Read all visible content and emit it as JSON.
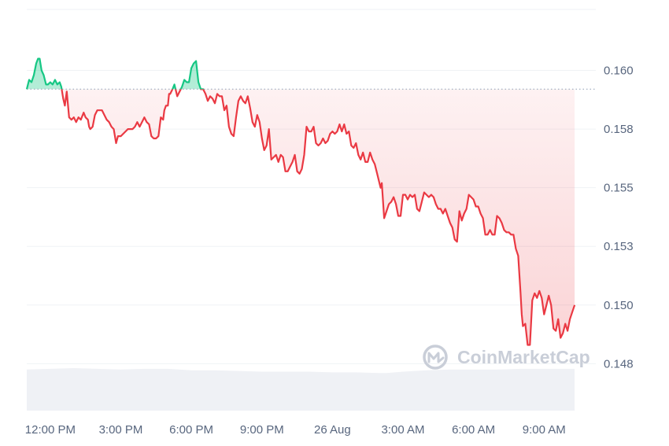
{
  "chart_data": {
    "type": "area",
    "title": "",
    "xlabel": "",
    "ylabel": "",
    "baseline": 0.1592,
    "ylim": [
      0.1455,
      0.1626
    ],
    "y_ticks": [
      {
        "value": 0.16,
        "label": "0.160"
      },
      {
        "value": 0.1575,
        "label": "0.158"
      },
      {
        "value": 0.155,
        "label": "0.155"
      },
      {
        "value": 0.1525,
        "label": "0.153"
      },
      {
        "value": 0.15,
        "label": "0.150"
      },
      {
        "value": 0.1475,
        "label": "0.148"
      }
    ],
    "x_ticks": [
      {
        "value": 1.0,
        "label": "12:00 PM"
      },
      {
        "value": 4.0,
        "label": "3:00 PM"
      },
      {
        "value": 7.0,
        "label": "6:00 PM"
      },
      {
        "value": 10.0,
        "label": "9:00 PM"
      },
      {
        "value": 13.0,
        "label": "26 Aug"
      },
      {
        "value": 16.0,
        "label": "3:00 AM"
      },
      {
        "value": 19.0,
        "label": "6:00 AM"
      },
      {
        "value": 22.0,
        "label": "9:00 AM"
      }
    ],
    "xlim": [
      0.0,
      24.2
    ],
    "grid": true,
    "colors": {
      "up": "#16c784",
      "down": "#ea3943",
      "grid": "#eff2f5",
      "volume": "#eff1f5",
      "baseline": "#a6b0c3",
      "axis_text": "#58667e",
      "watermark": "#c9ced8"
    },
    "series": [
      {
        "values": [
          [
            0.0,
            0.1592
          ],
          [
            0.1,
            0.1596
          ],
          [
            0.2,
            0.1595
          ],
          [
            0.3,
            0.1598
          ],
          [
            0.4,
            0.1603
          ],
          [
            0.48,
            0.1605
          ],
          [
            0.55,
            0.1605
          ],
          [
            0.63,
            0.16
          ],
          [
            0.72,
            0.1598
          ],
          [
            0.82,
            0.1594
          ],
          [
            0.9,
            0.1594
          ],
          [
            1.0,
            0.1595
          ],
          [
            1.1,
            0.1594
          ],
          [
            1.2,
            0.1596
          ],
          [
            1.3,
            0.1594
          ],
          [
            1.4,
            0.1595
          ],
          [
            1.47,
            0.1593
          ],
          [
            1.55,
            0.1588
          ],
          [
            1.62,
            0.1585
          ],
          [
            1.7,
            0.1591
          ],
          [
            1.8,
            0.158
          ],
          [
            1.9,
            0.1579
          ],
          [
            2.0,
            0.158
          ],
          [
            2.1,
            0.1578
          ],
          [
            2.2,
            0.158
          ],
          [
            2.3,
            0.1579
          ],
          [
            2.42,
            0.1582
          ],
          [
            2.5,
            0.158
          ],
          [
            2.6,
            0.1579
          ],
          [
            2.65,
            0.1576
          ],
          [
            2.7,
            0.1575
          ],
          [
            2.8,
            0.1576
          ],
          [
            2.9,
            0.1581
          ],
          [
            3.0,
            0.1583
          ],
          [
            3.1,
            0.1583
          ],
          [
            3.2,
            0.1583
          ],
          [
            3.3,
            0.1581
          ],
          [
            3.4,
            0.1579
          ],
          [
            3.5,
            0.1578
          ],
          [
            3.6,
            0.1576
          ],
          [
            3.7,
            0.1575
          ],
          [
            3.8,
            0.1569
          ],
          [
            3.88,
            0.1572
          ],
          [
            4.0,
            0.1572
          ],
          [
            4.1,
            0.1573
          ],
          [
            4.2,
            0.1574
          ],
          [
            4.3,
            0.1575
          ],
          [
            4.4,
            0.1575
          ],
          [
            4.5,
            0.1575
          ],
          [
            4.6,
            0.1576
          ],
          [
            4.7,
            0.1578
          ],
          [
            4.8,
            0.1576
          ],
          [
            4.9,
            0.1578
          ],
          [
            5.0,
            0.158
          ],
          [
            5.1,
            0.1578
          ],
          [
            5.2,
            0.1577
          ],
          [
            5.3,
            0.1572
          ],
          [
            5.4,
            0.1571
          ],
          [
            5.5,
            0.1571
          ],
          [
            5.6,
            0.1572
          ],
          [
            5.7,
            0.158
          ],
          [
            5.8,
            0.1579
          ],
          [
            5.85,
            0.1583
          ],
          [
            5.92,
            0.1585
          ],
          [
            6.0,
            0.1585
          ],
          [
            6.05,
            0.159
          ],
          [
            6.1,
            0.159
          ],
          [
            6.2,
            0.1592
          ],
          [
            6.28,
            0.1594
          ],
          [
            6.4,
            0.1589
          ],
          [
            6.5,
            0.1591
          ],
          [
            6.6,
            0.1593
          ],
          [
            6.7,
            0.1596
          ],
          [
            6.8,
            0.1595
          ],
          [
            6.9,
            0.1595
          ],
          [
            7.0,
            0.1601
          ],
          [
            7.1,
            0.1603
          ],
          [
            7.2,
            0.1604
          ],
          [
            7.3,
            0.1595
          ],
          [
            7.4,
            0.1592
          ],
          [
            7.5,
            0.1592
          ],
          [
            7.6,
            0.159
          ],
          [
            7.7,
            0.1587
          ],
          [
            7.8,
            0.1589
          ],
          [
            7.9,
            0.1588
          ],
          [
            8.0,
            0.1586
          ],
          [
            8.1,
            0.159
          ],
          [
            8.2,
            0.1589
          ],
          [
            8.3,
            0.1589
          ],
          [
            8.4,
            0.1583
          ],
          [
            8.5,
            0.1585
          ],
          [
            8.6,
            0.1576
          ],
          [
            8.7,
            0.1573
          ],
          [
            8.8,
            0.1572
          ],
          [
            8.9,
            0.158
          ],
          [
            9.0,
            0.1587
          ],
          [
            9.1,
            0.1589
          ],
          [
            9.2,
            0.1587
          ],
          [
            9.3,
            0.1586
          ],
          [
            9.4,
            0.1589
          ],
          [
            9.5,
            0.1584
          ],
          [
            9.6,
            0.1578
          ],
          [
            9.7,
            0.1576
          ],
          [
            9.8,
            0.1581
          ],
          [
            9.9,
            0.1578
          ],
          [
            10.0,
            0.1571
          ],
          [
            10.1,
            0.1566
          ],
          [
            10.2,
            0.1568
          ],
          [
            10.3,
            0.1575
          ],
          [
            10.4,
            0.1562
          ],
          [
            10.5,
            0.1563
          ],
          [
            10.6,
            0.1564
          ],
          [
            10.7,
            0.1561
          ],
          [
            10.8,
            0.1564
          ],
          [
            10.9,
            0.1563
          ],
          [
            11.0,
            0.1557
          ],
          [
            11.1,
            0.1557
          ],
          [
            11.2,
            0.1559
          ],
          [
            11.3,
            0.1561
          ],
          [
            11.4,
            0.1564
          ],
          [
            11.5,
            0.1557
          ],
          [
            11.6,
            0.1556
          ],
          [
            11.7,
            0.1558
          ],
          [
            11.8,
            0.1564
          ],
          [
            11.9,
            0.1576
          ],
          [
            12.0,
            0.1574
          ],
          [
            12.1,
            0.1574
          ],
          [
            12.2,
            0.1576
          ],
          [
            12.3,
            0.1569
          ],
          [
            12.4,
            0.1568
          ],
          [
            12.5,
            0.1569
          ],
          [
            12.6,
            0.1571
          ],
          [
            12.7,
            0.1569
          ],
          [
            12.8,
            0.157
          ],
          [
            12.9,
            0.1573
          ],
          [
            13.0,
            0.1574
          ],
          [
            13.1,
            0.1573
          ],
          [
            13.2,
            0.1574
          ],
          [
            13.3,
            0.1577
          ],
          [
            13.4,
            0.1574
          ],
          [
            13.5,
            0.1577
          ],
          [
            13.6,
            0.1573
          ],
          [
            13.7,
            0.1574
          ],
          [
            13.8,
            0.1568
          ],
          [
            13.9,
            0.1567
          ],
          [
            14.0,
            0.1569
          ],
          [
            14.1,
            0.1564
          ],
          [
            14.2,
            0.1562
          ],
          [
            14.3,
            0.1565
          ],
          [
            14.4,
            0.1561
          ],
          [
            14.5,
            0.1561
          ],
          [
            14.6,
            0.1565
          ],
          [
            14.7,
            0.1562
          ],
          [
            14.8,
            0.156
          ],
          [
            14.9,
            0.1556
          ],
          [
            15.0,
            0.1552
          ],
          [
            15.05,
            0.155
          ],
          [
            15.1,
            0.1552
          ],
          [
            15.2,
            0.1537
          ],
          [
            15.3,
            0.154
          ],
          [
            15.4,
            0.1543
          ],
          [
            15.5,
            0.1544
          ],
          [
            15.6,
            0.1546
          ],
          [
            15.7,
            0.1543
          ],
          [
            15.8,
            0.1538
          ],
          [
            15.9,
            0.1538
          ],
          [
            16.0,
            0.1547
          ],
          [
            16.1,
            0.1547
          ],
          [
            16.2,
            0.1545
          ],
          [
            16.3,
            0.1547
          ],
          [
            16.4,
            0.1546
          ],
          [
            16.5,
            0.1547
          ],
          [
            16.6,
            0.1541
          ],
          [
            16.7,
            0.154
          ],
          [
            16.8,
            0.1544
          ],
          [
            16.9,
            0.1548
          ],
          [
            17.0,
            0.1547
          ],
          [
            17.1,
            0.1546
          ],
          [
            17.2,
            0.1547
          ],
          [
            17.3,
            0.1546
          ],
          [
            17.4,
            0.1543
          ],
          [
            17.5,
            0.1541
          ],
          [
            17.6,
            0.1541
          ],
          [
            17.7,
            0.1539
          ],
          [
            17.8,
            0.1541
          ],
          [
            17.9,
            0.1538
          ],
          [
            18.0,
            0.1535
          ],
          [
            18.1,
            0.1533
          ],
          [
            18.2,
            0.1528
          ],
          [
            18.3,
            0.1527
          ],
          [
            18.4,
            0.154
          ],
          [
            18.5,
            0.1536
          ],
          [
            18.6,
            0.1539
          ],
          [
            18.7,
            0.1541
          ],
          [
            18.8,
            0.1547
          ],
          [
            18.9,
            0.1546
          ],
          [
            19.0,
            0.1545
          ],
          [
            19.1,
            0.1542
          ],
          [
            19.2,
            0.1542
          ],
          [
            19.3,
            0.1539
          ],
          [
            19.4,
            0.1537
          ],
          [
            19.5,
            0.153
          ],
          [
            19.6,
            0.153
          ],
          [
            19.7,
            0.1532
          ],
          [
            19.8,
            0.153
          ],
          [
            19.9,
            0.153
          ],
          [
            20.0,
            0.1538
          ],
          [
            20.1,
            0.1537
          ],
          [
            20.2,
            0.1535
          ],
          [
            20.3,
            0.1532
          ],
          [
            20.4,
            0.1531
          ],
          [
            20.5,
            0.1531
          ],
          [
            20.6,
            0.153
          ],
          [
            20.7,
            0.153
          ],
          [
            20.8,
            0.1524
          ],
          [
            20.9,
            0.1521
          ],
          [
            21.0,
            0.1505
          ],
          [
            21.05,
            0.1496
          ],
          [
            21.1,
            0.1491
          ],
          [
            21.2,
            0.1492
          ],
          [
            21.3,
            0.1483
          ],
          [
            21.4,
            0.1483
          ],
          [
            21.5,
            0.1502
          ],
          [
            21.6,
            0.1505
          ],
          [
            21.7,
            0.1503
          ],
          [
            21.8,
            0.1506
          ],
          [
            21.9,
            0.1503
          ],
          [
            22.0,
            0.1496
          ],
          [
            22.1,
            0.15
          ],
          [
            22.2,
            0.1504
          ],
          [
            22.3,
            0.15
          ],
          [
            22.4,
            0.149
          ],
          [
            22.5,
            0.1489
          ],
          [
            22.6,
            0.1494
          ],
          [
            22.7,
            0.1486
          ],
          [
            22.8,
            0.1488
          ],
          [
            22.9,
            0.1492
          ],
          [
            23.0,
            0.1489
          ],
          [
            23.1,
            0.1494
          ],
          [
            23.2,
            0.1497
          ],
          [
            23.3,
            0.15
          ]
        ]
      }
    ],
    "volume": {
      "ylim": [
        0,
        100
      ],
      "values": [
        [
          0.0,
          58
        ],
        [
          1.0,
          59
        ],
        [
          2.0,
          60
        ],
        [
          3.0,
          59
        ],
        [
          4.0,
          58
        ],
        [
          5.0,
          59
        ],
        [
          6.0,
          59
        ],
        [
          7.0,
          57
        ],
        [
          8.0,
          57
        ],
        [
          9.0,
          56
        ],
        [
          10.0,
          55
        ],
        [
          11.0,
          55
        ],
        [
          12.0,
          55
        ],
        [
          13.0,
          54
        ],
        [
          14.0,
          54
        ],
        [
          15.0,
          53
        ],
        [
          15.3,
          53
        ],
        [
          16.0,
          55
        ],
        [
          17.0,
          57
        ],
        [
          18.0,
          58
        ],
        [
          19.0,
          58
        ],
        [
          20.0,
          58
        ],
        [
          21.0,
          59
        ],
        [
          22.0,
          59
        ],
        [
          23.3,
          59
        ]
      ]
    },
    "watermark": "CoinMarketCap"
  }
}
